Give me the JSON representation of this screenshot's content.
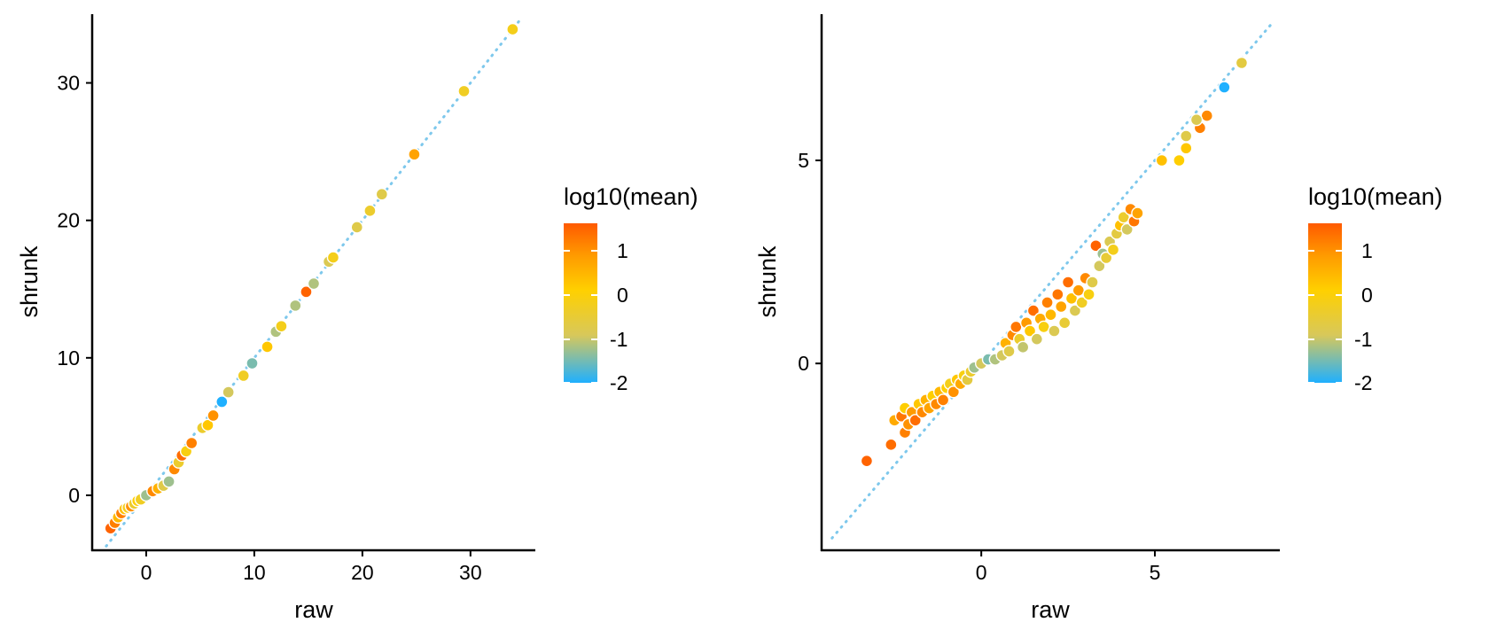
{
  "colors": {
    "reference_line": "#7ec8ec",
    "point_outline": "#ffffff",
    "gradient": [
      "#1fb0ff",
      "#d8c85a",
      "#ffd000",
      "#ff9a00",
      "#ff5a00"
    ]
  },
  "chart_data": [
    {
      "type": "scatter",
      "title": "",
      "xlabel": "raw",
      "ylabel": "shrunk",
      "xlim": [
        -5,
        36
      ],
      "ylim": [
        -4,
        35
      ],
      "xticks": [
        0,
        10,
        20,
        30
      ],
      "yticks": [
        0,
        10,
        20,
        30
      ],
      "xtick_labels": [
        "0",
        "10",
        "20",
        "30"
      ],
      "ytick_labels": [
        "0",
        "10",
        "20",
        "30"
      ],
      "grid": false,
      "reference_line": "y = x (dotted)",
      "color_legend": {
        "title": "log10(mean)",
        "range": [
          -2,
          1.4
        ],
        "ticks": [
          "1",
          "0",
          "-1",
          "-2"
        ],
        "placement": "right"
      },
      "points": [
        {
          "x": -3.3,
          "y": -2.4,
          "c": 1.3
        },
        {
          "x": -2.9,
          "y": -2.0,
          "c": 1.0
        },
        {
          "x": -2.6,
          "y": -1.6,
          "c": 0.3
        },
        {
          "x": -2.3,
          "y": -1.3,
          "c": 1.0
        },
        {
          "x": -2.0,
          "y": -1.0,
          "c": 0.2
        },
        {
          "x": -1.7,
          "y": -0.9,
          "c": -0.3
        },
        {
          "x": -1.4,
          "y": -0.8,
          "c": 0.8
        },
        {
          "x": -1.1,
          "y": -0.6,
          "c": -0.5
        },
        {
          "x": -0.8,
          "y": -0.4,
          "c": 0.0
        },
        {
          "x": -0.5,
          "y": -0.3,
          "c": -0.4
        },
        {
          "x": 0.0,
          "y": 0.0,
          "c": -1.3
        },
        {
          "x": 0.6,
          "y": 0.3,
          "c": 0.9
        },
        {
          "x": 1.1,
          "y": 0.5,
          "c": 0.4
        },
        {
          "x": 1.6,
          "y": 0.7,
          "c": -0.8
        },
        {
          "x": 2.1,
          "y": 1.0,
          "c": -1.3
        },
        {
          "x": 2.6,
          "y": 1.9,
          "c": 0.9
        },
        {
          "x": 3.0,
          "y": 2.4,
          "c": -0.5
        },
        {
          "x": 3.3,
          "y": 2.9,
          "c": 1.2
        },
        {
          "x": 3.7,
          "y": 3.2,
          "c": -0.2
        },
        {
          "x": 4.2,
          "y": 3.8,
          "c": 1.0
        },
        {
          "x": 5.2,
          "y": 4.9,
          "c": -0.5
        },
        {
          "x": 5.7,
          "y": 5.1,
          "c": 0.1
        },
        {
          "x": 6.2,
          "y": 5.8,
          "c": 0.8
        },
        {
          "x": 7.0,
          "y": 6.8,
          "c": -2.0
        },
        {
          "x": 7.6,
          "y": 7.5,
          "c": -1.0
        },
        {
          "x": 9.0,
          "y": 8.7,
          "c": -0.4
        },
        {
          "x": 9.8,
          "y": 9.6,
          "c": -1.5
        },
        {
          "x": 11.2,
          "y": 10.8,
          "c": 0.1
        },
        {
          "x": 12.0,
          "y": 11.9,
          "c": -1.2
        },
        {
          "x": 12.5,
          "y": 12.3,
          "c": -0.3
        },
        {
          "x": 13.8,
          "y": 13.8,
          "c": -1.2
        },
        {
          "x": 14.8,
          "y": 14.8,
          "c": 1.3
        },
        {
          "x": 15.5,
          "y": 15.4,
          "c": -1.2
        },
        {
          "x": 16.9,
          "y": 17.0,
          "c": -0.9
        },
        {
          "x": 17.3,
          "y": 17.3,
          "c": -0.3
        },
        {
          "x": 19.5,
          "y": 19.5,
          "c": -0.8
        },
        {
          "x": 20.7,
          "y": 20.7,
          "c": -0.5
        },
        {
          "x": 21.8,
          "y": 21.9,
          "c": -0.8
        },
        {
          "x": 24.8,
          "y": 24.8,
          "c": 0.6
        },
        {
          "x": 29.4,
          "y": 29.4,
          "c": -0.4
        },
        {
          "x": 33.9,
          "y": 33.9,
          "c": -0.3
        }
      ]
    },
    {
      "type": "scatter",
      "title": "",
      "xlabel": "raw",
      "ylabel": "shrunk",
      "xlim": [
        -4.6,
        8.6
      ],
      "ylim": [
        -4.6,
        8.6
      ],
      "xticks": [
        0,
        5
      ],
      "yticks": [
        0,
        5
      ],
      "xtick_labels": [
        "0",
        "5"
      ],
      "ytick_labels": [
        "0",
        "5"
      ],
      "grid": false,
      "reference_line": "y = x (dotted)",
      "color_legend": {
        "title": "log10(mean)",
        "range": [
          -2,
          1.4
        ],
        "ticks": [
          "1",
          "0",
          "-1",
          "-2"
        ],
        "placement": "right"
      },
      "points": [
        {
          "x": -3.3,
          "y": -2.4,
          "c": 1.3
        },
        {
          "x": -2.6,
          "y": -2.0,
          "c": 1.2
        },
        {
          "x": -2.2,
          "y": -1.7,
          "c": 1.0
        },
        {
          "x": -2.5,
          "y": -1.4,
          "c": 0.5
        },
        {
          "x": -2.3,
          "y": -1.3,
          "c": 1.1
        },
        {
          "x": -2.1,
          "y": -1.5,
          "c": 0.8
        },
        {
          "x": -2.2,
          "y": -1.1,
          "c": 0.0
        },
        {
          "x": -2.0,
          "y": -1.2,
          "c": 0.7
        },
        {
          "x": -1.9,
          "y": -1.4,
          "c": 1.2
        },
        {
          "x": -1.8,
          "y": -1.0,
          "c": 0.1
        },
        {
          "x": -1.7,
          "y": -1.2,
          "c": 0.9
        },
        {
          "x": -1.6,
          "y": -0.9,
          "c": 0.4
        },
        {
          "x": -1.5,
          "y": -1.1,
          "c": 0.6
        },
        {
          "x": -1.4,
          "y": -0.8,
          "c": 0.0
        },
        {
          "x": -1.3,
          "y": -1.0,
          "c": 0.9
        },
        {
          "x": -1.2,
          "y": -0.7,
          "c": 0.3
        },
        {
          "x": -1.1,
          "y": -0.9,
          "c": 1.0
        },
        {
          "x": -1.0,
          "y": -0.6,
          "c": 0.0
        },
        {
          "x": -0.9,
          "y": -0.5,
          "c": -0.3
        },
        {
          "x": -0.8,
          "y": -0.7,
          "c": 0.8
        },
        {
          "x": -0.7,
          "y": -0.4,
          "c": 0.1
        },
        {
          "x": -0.6,
          "y": -0.5,
          "c": 0.5
        },
        {
          "x": -0.5,
          "y": -0.3,
          "c": -0.2
        },
        {
          "x": -0.4,
          "y": -0.4,
          "c": -0.7
        },
        {
          "x": -0.3,
          "y": -0.2,
          "c": -0.5
        },
        {
          "x": -0.2,
          "y": -0.1,
          "c": -1.3
        },
        {
          "x": 0.0,
          "y": 0.0,
          "c": -1.0
        },
        {
          "x": 0.2,
          "y": 0.1,
          "c": -1.5
        },
        {
          "x": 0.4,
          "y": 0.1,
          "c": -1.2
        },
        {
          "x": 0.6,
          "y": 0.2,
          "c": -1.0
        },
        {
          "x": 0.7,
          "y": 0.5,
          "c": 0.4
        },
        {
          "x": 0.8,
          "y": 0.3,
          "c": -0.8
        },
        {
          "x": 0.9,
          "y": 0.7,
          "c": 0.9
        },
        {
          "x": 1.0,
          "y": 0.9,
          "c": 1.1
        },
        {
          "x": 1.1,
          "y": 0.6,
          "c": -0.5
        },
        {
          "x": 1.2,
          "y": 0.4,
          "c": -1.1
        },
        {
          "x": 1.3,
          "y": 1.0,
          "c": 0.7
        },
        {
          "x": 1.4,
          "y": 0.8,
          "c": 0.1
        },
        {
          "x": 1.5,
          "y": 1.3,
          "c": 1.2
        },
        {
          "x": 1.6,
          "y": 0.6,
          "c": -1.0
        },
        {
          "x": 1.7,
          "y": 1.1,
          "c": 0.5
        },
        {
          "x": 1.8,
          "y": 0.9,
          "c": -0.2
        },
        {
          "x": 1.9,
          "y": 1.5,
          "c": 1.0
        },
        {
          "x": 2.0,
          "y": 1.2,
          "c": 0.3
        },
        {
          "x": 2.1,
          "y": 0.8,
          "c": -0.9
        },
        {
          "x": 2.2,
          "y": 1.7,
          "c": 1.1
        },
        {
          "x": 2.3,
          "y": 1.4,
          "c": 0.6
        },
        {
          "x": 2.4,
          "y": 1.0,
          "c": -0.6
        },
        {
          "x": 2.5,
          "y": 2.0,
          "c": 1.2
        },
        {
          "x": 2.6,
          "y": 1.6,
          "c": 0.2
        },
        {
          "x": 2.7,
          "y": 1.3,
          "c": -0.9
        },
        {
          "x": 2.8,
          "y": 1.8,
          "c": 0.7
        },
        {
          "x": 2.9,
          "y": 1.5,
          "c": -0.4
        },
        {
          "x": 3.0,
          "y": 2.1,
          "c": 0.9
        },
        {
          "x": 3.1,
          "y": 1.7,
          "c": -0.2
        },
        {
          "x": 3.3,
          "y": 2.9,
          "c": 1.3
        },
        {
          "x": 3.2,
          "y": 2.0,
          "c": -0.8
        },
        {
          "x": 3.4,
          "y": 2.4,
          "c": -1.0
        },
        {
          "x": 3.5,
          "y": 2.7,
          "c": -1.3
        },
        {
          "x": 3.6,
          "y": 2.6,
          "c": -0.6
        },
        {
          "x": 3.7,
          "y": 3.0,
          "c": -0.9
        },
        {
          "x": 3.8,
          "y": 2.8,
          "c": -0.3
        },
        {
          "x": 3.9,
          "y": 3.2,
          "c": -0.7
        },
        {
          "x": 4.0,
          "y": 3.4,
          "c": 0.2
        },
        {
          "x": 4.1,
          "y": 3.6,
          "c": -0.5
        },
        {
          "x": 4.2,
          "y": 3.3,
          "c": -1.0
        },
        {
          "x": 4.3,
          "y": 3.8,
          "c": 0.9
        },
        {
          "x": 4.4,
          "y": 3.5,
          "c": 1.1
        },
        {
          "x": 4.5,
          "y": 3.7,
          "c": 0.6
        },
        {
          "x": 5.2,
          "y": 5.0,
          "c": 0.2
        },
        {
          "x": 5.7,
          "y": 5.0,
          "c": 0.0
        },
        {
          "x": 5.9,
          "y": 5.3,
          "c": 0.1
        },
        {
          "x": 5.9,
          "y": 5.6,
          "c": -0.8
        },
        {
          "x": 6.3,
          "y": 5.8,
          "c": 1.0
        },
        {
          "x": 6.5,
          "y": 6.1,
          "c": 0.9
        },
        {
          "x": 6.2,
          "y": 6.0,
          "c": -0.9
        },
        {
          "x": 7.0,
          "y": 6.8,
          "c": -2.0
        },
        {
          "x": 7.5,
          "y": 7.4,
          "c": -0.7
        }
      ]
    }
  ]
}
